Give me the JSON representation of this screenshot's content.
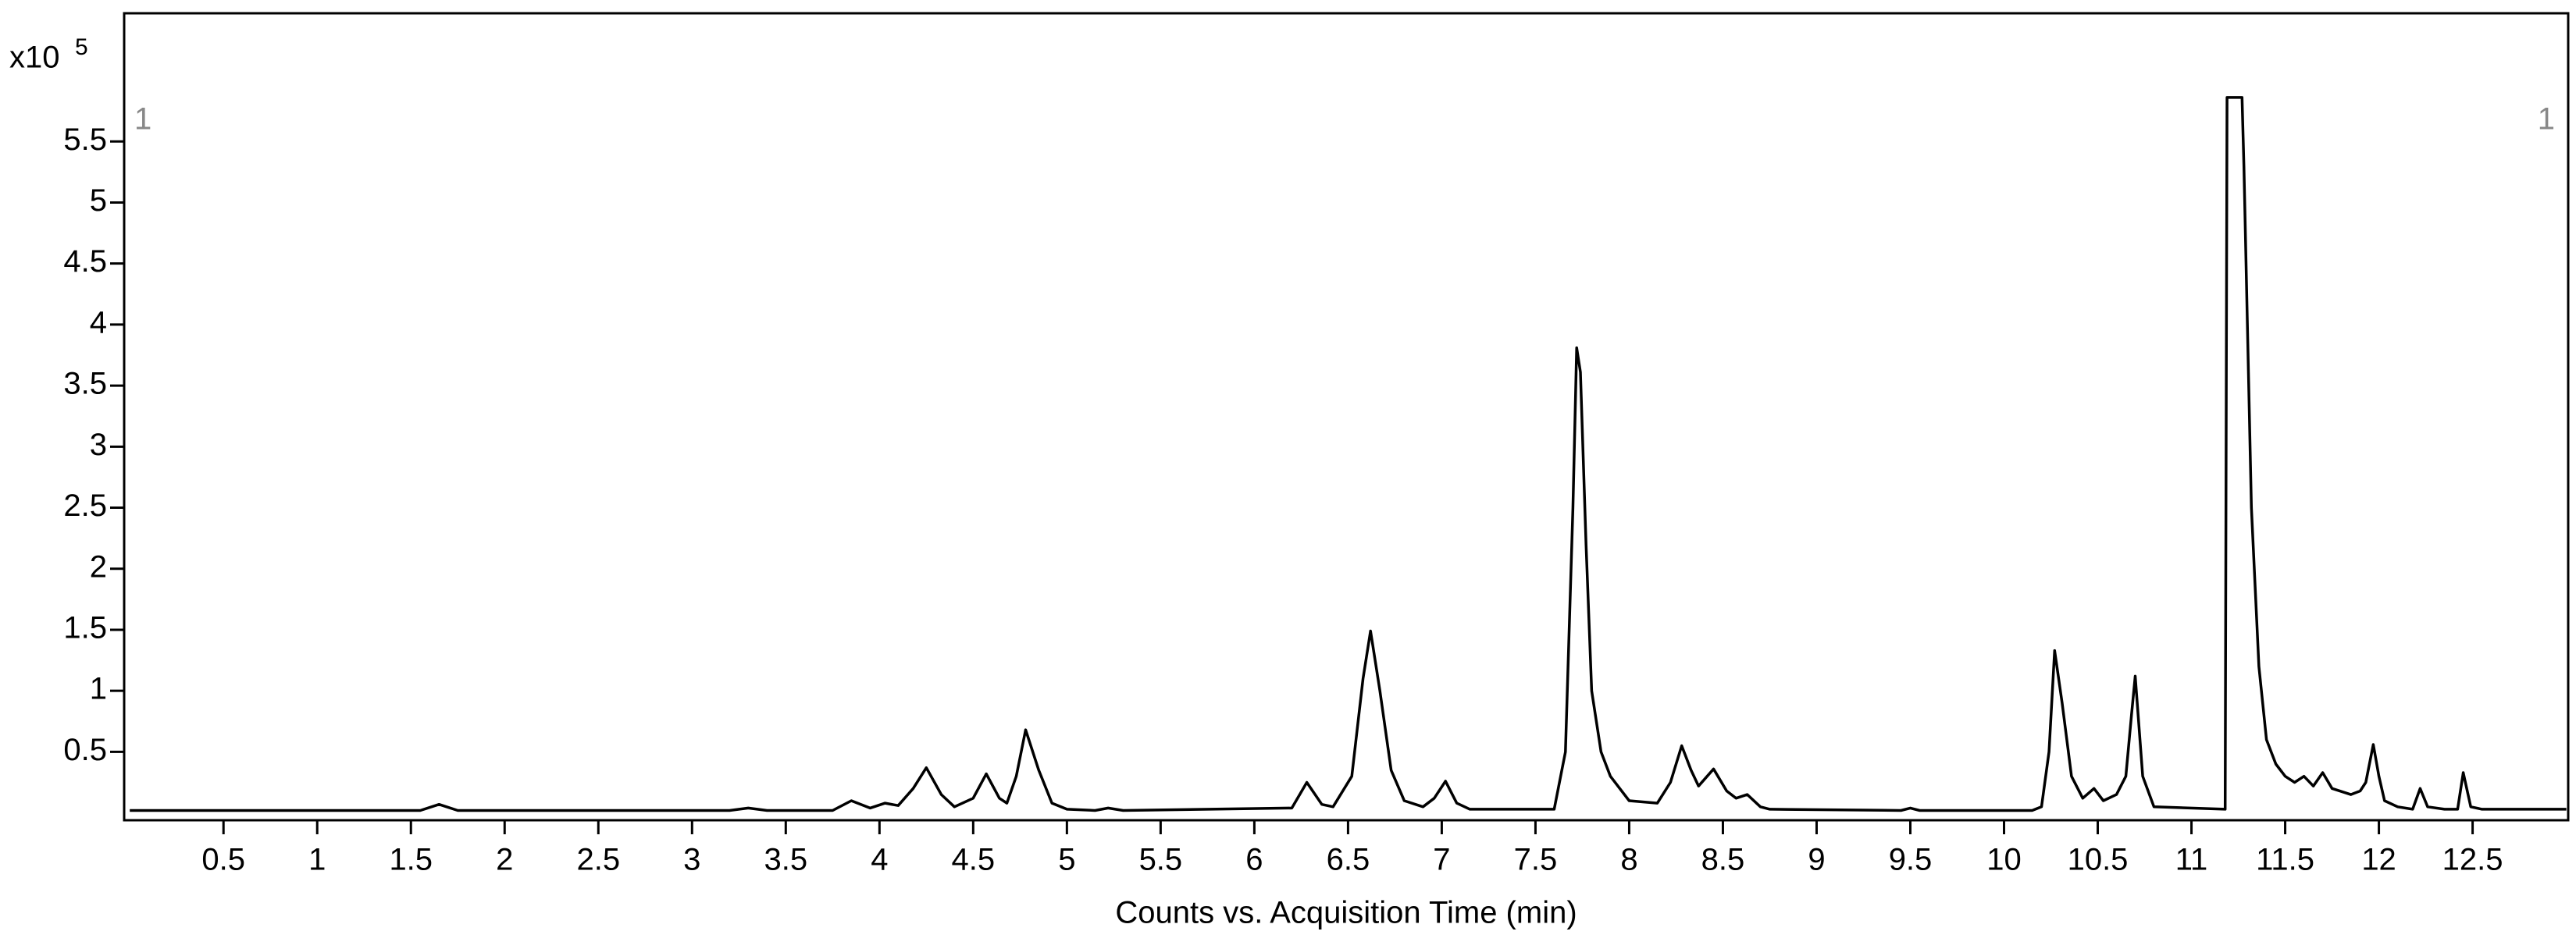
{
  "chart_data": {
    "type": "line",
    "xlabel": "Counts vs. Acquisition Time (min)",
    "y_multiplier": {
      "base": "x10",
      "exponent": "5"
    },
    "trace_labels": [
      "1",
      "1"
    ],
    "color": "#000000",
    "xlim": [
      -0.03,
      13.01
    ],
    "ylim": [
      -0.06,
      6.55
    ],
    "xticks": [
      0.5,
      1,
      1.5,
      2,
      2.5,
      3,
      3.5,
      4,
      4.5,
      5,
      5.5,
      6,
      6.5,
      7,
      7.5,
      8,
      8.5,
      9,
      9.5,
      10,
      10.5,
      11,
      11.5,
      12,
      12.5
    ],
    "yticks": [
      0.5,
      1,
      1.5,
      2,
      2.5,
      3,
      3.5,
      4,
      4.5,
      5,
      5.5
    ],
    "x": [
      0,
      1.55,
      1.65,
      1.75,
      3.2,
      3.3,
      3.4,
      3.75,
      3.85,
      3.95,
      4.03,
      4.1,
      4.18,
      4.25,
      4.33,
      4.4,
      4.5,
      4.57,
      4.64,
      4.68,
      4.73,
      4.78,
      4.85,
      4.92,
      5.0,
      5.15,
      5.22,
      5.3,
      6.2,
      6.28,
      6.36,
      6.42,
      6.52,
      6.58,
      6.62,
      6.67,
      6.73,
      6.8,
      6.9,
      6.96,
      7.02,
      7.08,
      7.15,
      7.6,
      7.66,
      7.7,
      7.72,
      7.74,
      7.77,
      7.8,
      7.85,
      7.9,
      8.0,
      8.15,
      8.22,
      8.28,
      8.33,
      8.37,
      8.45,
      8.52,
      8.57,
      8.63,
      8.7,
      8.75,
      9.45,
      9.5,
      9.55,
      10.15,
      10.2,
      10.24,
      10.27,
      10.31,
      10.36,
      10.42,
      10.48,
      10.53,
      10.6,
      10.65,
      10.68,
      10.7,
      10.74,
      10.8,
      11.18,
      11.19,
      11.27,
      11.28,
      11.32,
      11.36,
      11.4,
      11.45,
      11.5,
      11.55,
      11.6,
      11.65,
      11.7,
      11.75,
      11.85,
      11.9,
      11.93,
      11.97,
      12.0,
      12.03,
      12.1,
      12.18,
      12.22,
      12.26,
      12.35,
      12.42,
      12.45,
      12.49,
      12.55,
      13.0
    ],
    "values": [
      0.02,
      0.02,
      0.07,
      0.02,
      0.02,
      0.04,
      0.02,
      0.02,
      0.1,
      0.04,
      0.08,
      0.06,
      0.2,
      0.37,
      0.15,
      0.05,
      0.12,
      0.32,
      0.12,
      0.08,
      0.3,
      0.68,
      0.35,
      0.08,
      0.03,
      0.02,
      0.04,
      0.02,
      0.04,
      0.25,
      0.07,
      0.05,
      0.3,
      1.1,
      1.49,
      1.0,
      0.35,
      0.1,
      0.05,
      0.12,
      0.26,
      0.08,
      0.03,
      0.03,
      0.5,
      2.5,
      3.81,
      3.61,
      2.2,
      1.0,
      0.5,
      0.3,
      0.1,
      0.08,
      0.25,
      0.55,
      0.35,
      0.22,
      0.36,
      0.18,
      0.12,
      0.15,
      0.05,
      0.03,
      0.02,
      0.04,
      0.02,
      0.02,
      0.05,
      0.5,
      1.33,
      0.9,
      0.3,
      0.12,
      0.2,
      0.1,
      0.15,
      0.3,
      0.8,
      1.12,
      0.3,
      0.05,
      0.03,
      5.86,
      5.86,
      5.3,
      2.5,
      1.2,
      0.6,
      0.4,
      0.3,
      0.25,
      0.3,
      0.22,
      0.33,
      0.2,
      0.15,
      0.18,
      0.25,
      0.56,
      0.3,
      0.1,
      0.05,
      0.03,
      0.2,
      0.05,
      0.03,
      0.03,
      0.33,
      0.05,
      0.03,
      0.03
    ]
  }
}
